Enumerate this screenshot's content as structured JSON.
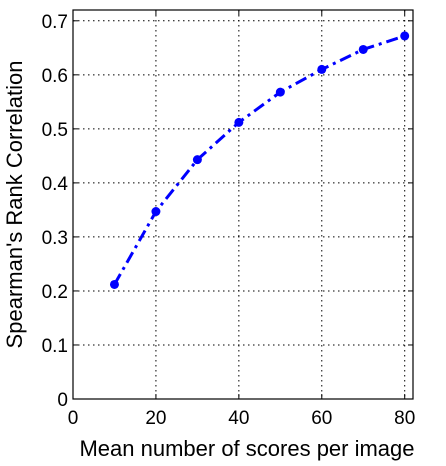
{
  "chart_data": {
    "type": "line",
    "title": "",
    "xlabel": "Mean number of scores per image",
    "ylabel": "Spearman's Rank Correlation",
    "xlim": [
      0,
      82
    ],
    "ylim": [
      0,
      0.72
    ],
    "xticks": [
      0,
      20,
      40,
      60,
      80
    ],
    "yticks": [
      0,
      0.1,
      0.2,
      0.3,
      0.4,
      0.5,
      0.6,
      0.7
    ],
    "xtick_labels": [
      "0",
      "20",
      "40",
      "60",
      "80"
    ],
    "ytick_labels": [
      "0",
      "0.1",
      "0.2",
      "0.3",
      "0.4",
      "0.5",
      "0.6",
      "0.7"
    ],
    "grid": true,
    "series": [
      {
        "x": [
          10,
          20,
          30,
          40,
          50,
          60,
          70,
          80
        ],
        "values": [
          0.212,
          0.347,
          0.443,
          0.512,
          0.568,
          0.61,
          0.647,
          0.672
        ],
        "color": "#0000ff",
        "line_style": "dash-dot",
        "marker": "circle"
      }
    ]
  }
}
